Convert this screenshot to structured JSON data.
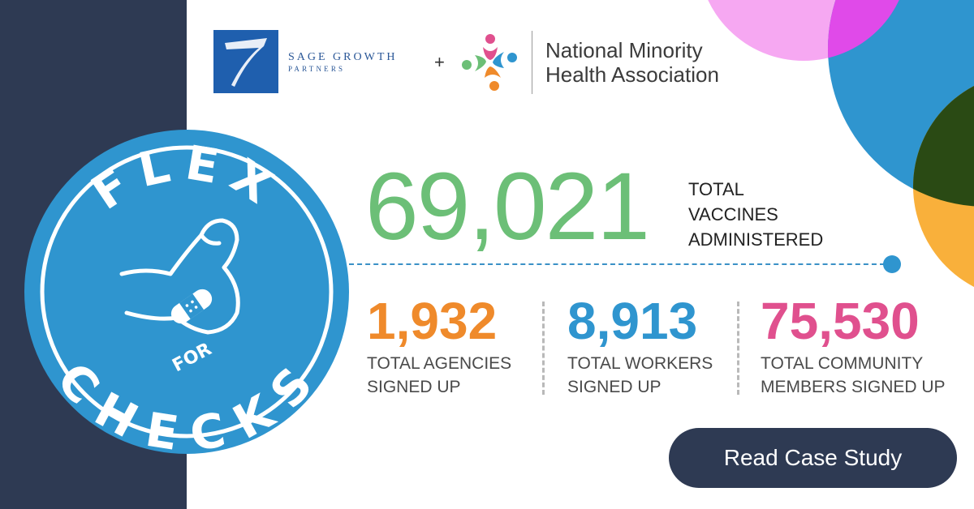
{
  "logos": {
    "sage_line1": "SAGE GROWTH",
    "sage_line2": "PARTNERS",
    "plus": "+",
    "nmha_line1": "National Minority",
    "nmha_line2": "Health Association"
  },
  "badge": {
    "top_text": "FLEX",
    "middle_text": "FOR",
    "bottom_text": "CHECKS",
    "icons": [
      "flexed-arm-icon",
      "bandage-icon"
    ]
  },
  "headline": {
    "value": "69,021",
    "label_line1": "TOTAL",
    "label_line2": "VACCINES",
    "label_line3": "ADMINISTERED"
  },
  "stats": [
    {
      "value": "1,932",
      "line1": "TOTAL AGENCIES",
      "line2": "SIGNED UP",
      "color": "#ef8a2b"
    },
    {
      "value": "8,913",
      "line1": "TOTAL WORKERS",
      "line2": "SIGNED UP",
      "color": "#2f95cf"
    },
    {
      "value": "75,530",
      "line1": "TOTAL COMMUNITY",
      "line2": "MEMBERS SIGNED UP",
      "color": "#e0508e"
    }
  ],
  "cta": {
    "label": "Read Case Study"
  },
  "colors": {
    "navy": "#2e3a53",
    "badge_blue": "#2f95cf",
    "green": "#6cbf77",
    "pink": "#f6a8f2",
    "magenta": "#e04ae9",
    "blue": "#2f95cf",
    "dark_green": "#2a4a14",
    "orange": "#f9b03b"
  }
}
